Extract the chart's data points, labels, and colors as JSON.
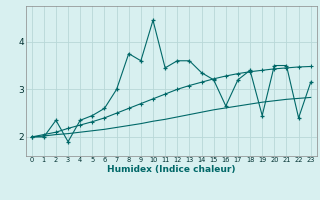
{
  "xlabel": "Humidex (Indice chaleur)",
  "ylabel": "",
  "bg_color": "#d8f0f0",
  "grid_color": "#b8d8d8",
  "line_color": "#006868",
  "xlim": [
    -0.5,
    23.5
  ],
  "ylim": [
    1.6,
    4.75
  ],
  "yticks": [
    2,
    3,
    4
  ],
  "xticks": [
    0,
    1,
    2,
    3,
    4,
    5,
    6,
    7,
    8,
    9,
    10,
    11,
    12,
    13,
    14,
    15,
    16,
    17,
    18,
    19,
    20,
    21,
    22,
    23
  ],
  "series1_x": [
    0,
    1,
    2,
    3,
    4,
    5,
    6,
    7,
    8,
    9,
    10,
    11,
    12,
    13,
    14,
    15,
    16,
    17,
    18,
    19,
    20,
    21,
    22,
    23
  ],
  "series1_y": [
    2.0,
    2.0,
    2.35,
    1.9,
    2.35,
    2.45,
    2.6,
    3.0,
    3.75,
    3.6,
    4.45,
    3.45,
    3.6,
    3.6,
    3.35,
    3.2,
    2.65,
    3.2,
    3.4,
    2.45,
    3.5,
    3.5,
    2.4,
    3.15
  ],
  "series2_x": [
    0,
    1,
    2,
    3,
    4,
    5,
    6,
    7,
    8,
    9,
    10,
    11,
    12,
    13,
    14,
    15,
    16,
    17,
    18,
    19,
    20,
    21,
    22,
    23
  ],
  "series2_y": [
    2.0,
    2.05,
    2.1,
    2.18,
    2.25,
    2.32,
    2.4,
    2.5,
    2.6,
    2.7,
    2.8,
    2.9,
    3.0,
    3.08,
    3.15,
    3.22,
    3.28,
    3.33,
    3.37,
    3.4,
    3.43,
    3.45,
    3.47,
    3.48
  ],
  "series3_x": [
    0,
    1,
    2,
    3,
    4,
    5,
    6,
    7,
    8,
    9,
    10,
    11,
    12,
    13,
    14,
    15,
    16,
    17,
    18,
    19,
    20,
    21,
    22,
    23
  ],
  "series3_y": [
    2.0,
    2.02,
    2.05,
    2.07,
    2.1,
    2.13,
    2.16,
    2.2,
    2.24,
    2.28,
    2.33,
    2.37,
    2.42,
    2.47,
    2.52,
    2.57,
    2.61,
    2.65,
    2.69,
    2.73,
    2.76,
    2.79,
    2.81,
    2.83
  ]
}
